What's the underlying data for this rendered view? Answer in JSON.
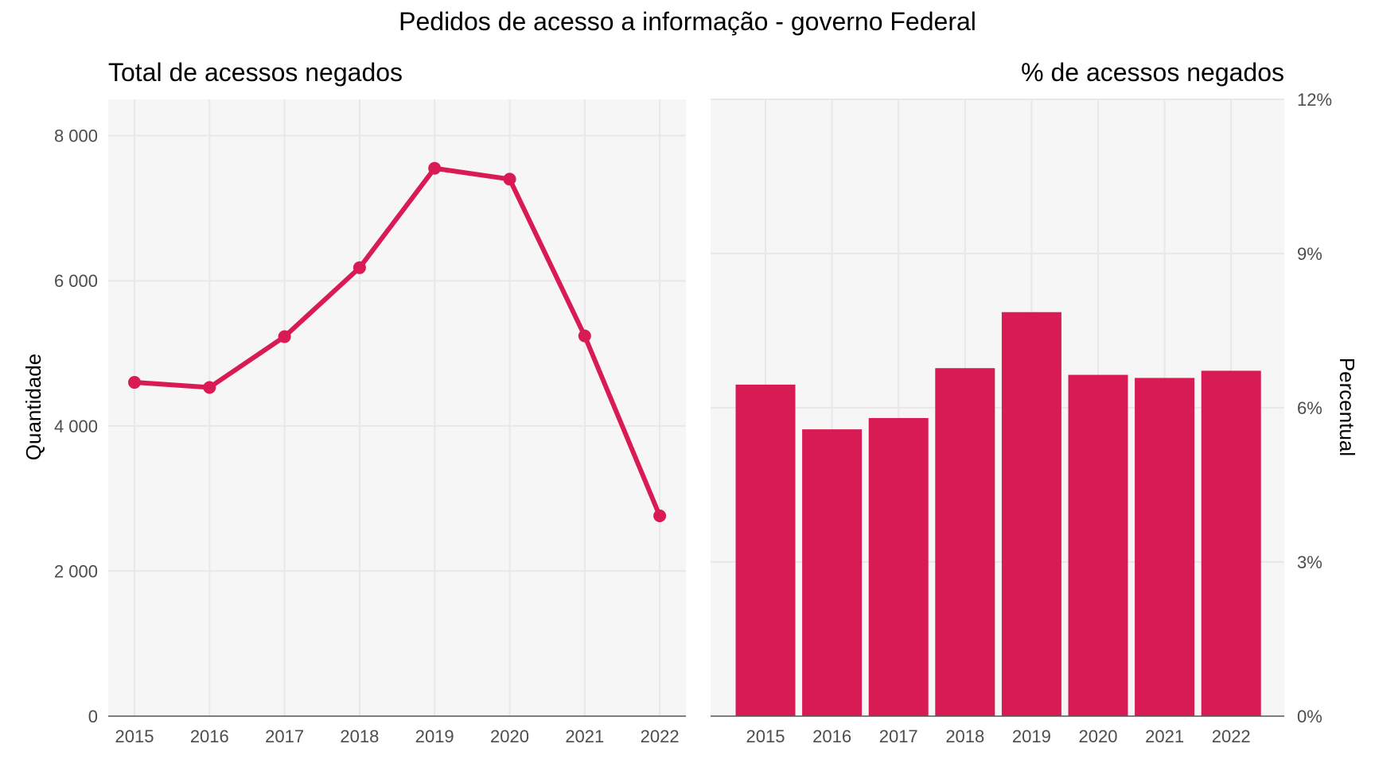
{
  "title": "Pedidos de acesso a informação - governo Federal",
  "colors": {
    "accent": "#d81b55",
    "panel_bg": "#f6f6f6",
    "grid": "#e8e8e8",
    "text": "#000000",
    "tick_text": "#4d4d4d"
  },
  "chart_data": [
    {
      "type": "line",
      "title": "Total de acessos negados",
      "ylabel": "Quantidade",
      "xlabel": "",
      "x": [
        "2015",
        "2016",
        "2017",
        "2018",
        "2019",
        "2020",
        "2021",
        "2022"
      ],
      "values": [
        4600,
        4530,
        5230,
        6180,
        7550,
        7400,
        5240,
        2760
      ],
      "ylim": [
        0,
        8500
      ],
      "yticks": [
        0,
        2000,
        4000,
        6000,
        8000
      ],
      "ytick_labels": [
        "0",
        "2 000",
        "4 000",
        "6 000",
        "8 000"
      ],
      "grid": true,
      "markers": true
    },
    {
      "type": "bar",
      "title": "% de acessos negados",
      "ylabel": "Percentual",
      "xlabel": "",
      "categories": [
        "2015",
        "2016",
        "2017",
        "2018",
        "2019",
        "2020",
        "2021",
        "2022"
      ],
      "values": [
        6.45,
        5.58,
        5.8,
        6.77,
        7.86,
        6.64,
        6.58,
        6.72
      ],
      "ylim": [
        0,
        12
      ],
      "yticks": [
        0,
        3,
        6,
        9,
        12
      ],
      "ytick_labels": [
        "0%",
        "3%",
        "6%",
        "9%",
        "12%"
      ],
      "yaxis_position": "right",
      "grid": true
    }
  ]
}
